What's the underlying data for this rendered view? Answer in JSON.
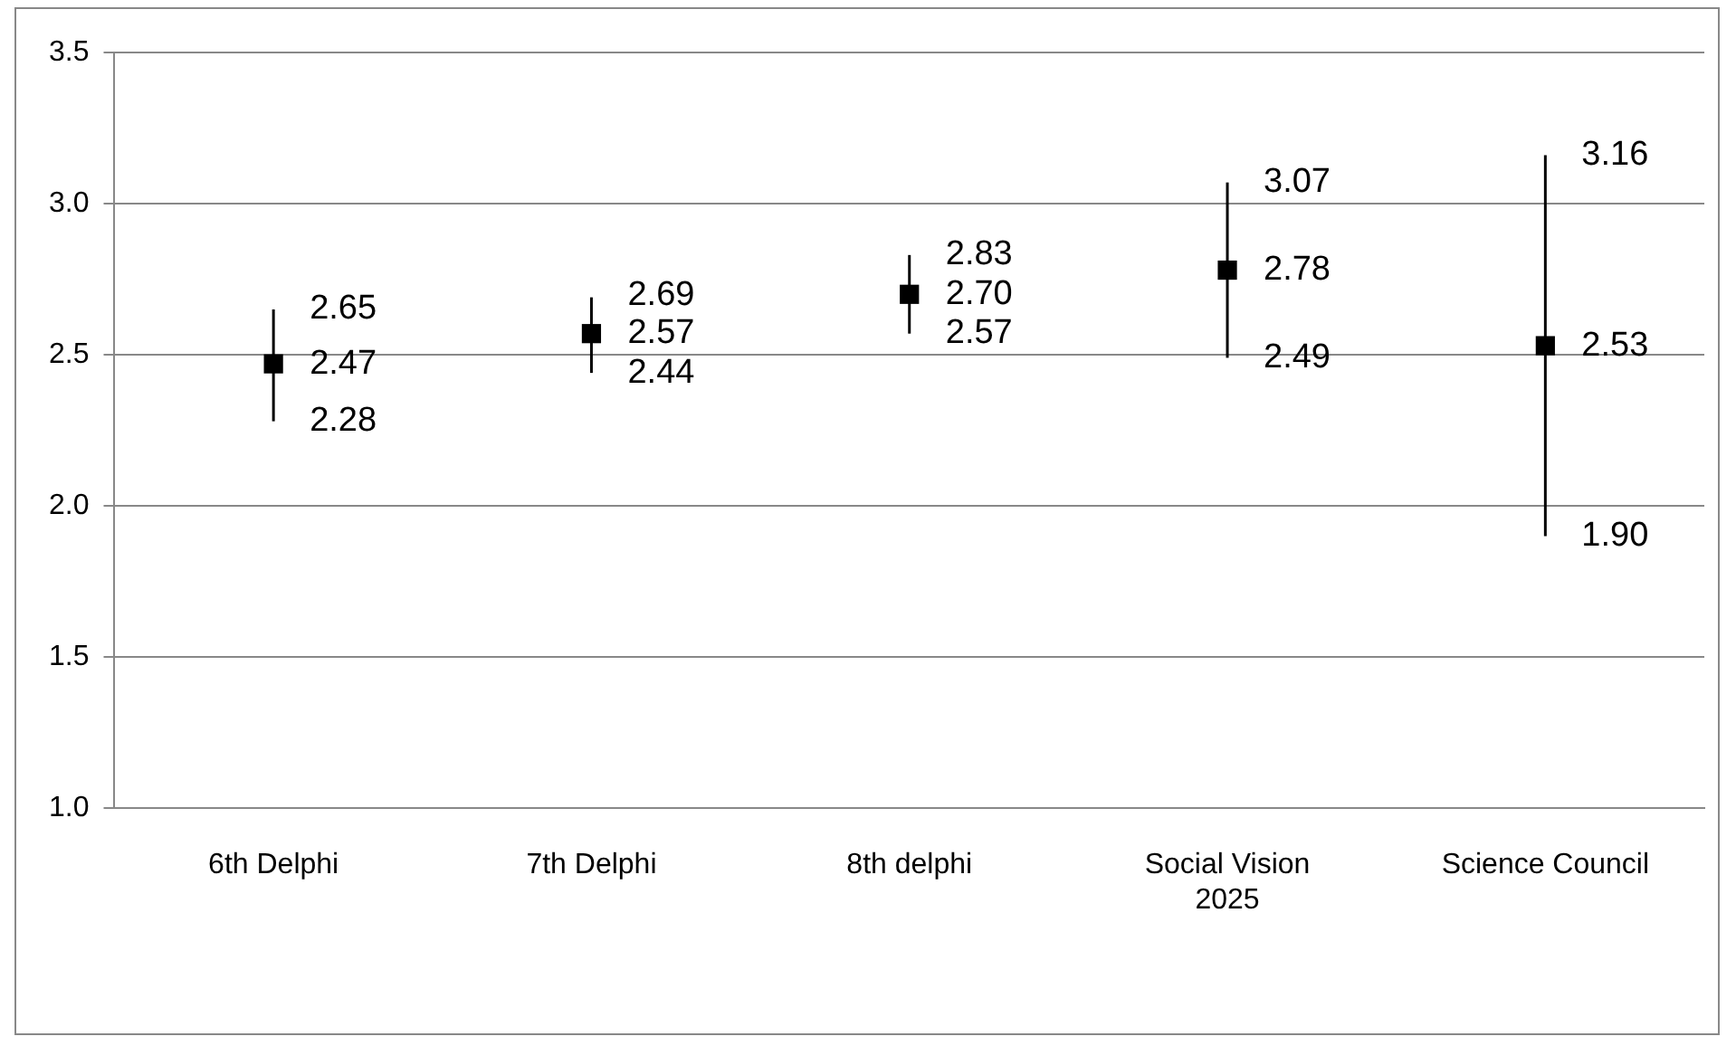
{
  "chart_data": {
    "type": "scatter",
    "categories": [
      "6th Delphi",
      "7th Delphi",
      "8th delphi",
      "Social Vision 2025",
      "Science Council"
    ],
    "values": [
      2.47,
      2.57,
      2.7,
      2.78,
      2.53
    ],
    "errors": [
      [
        2.28,
        2.65
      ],
      [
        2.44,
        2.69
      ],
      [
        2.57,
        2.83
      ],
      [
        2.49,
        3.07
      ],
      [
        1.9,
        3.16
      ]
    ],
    "color": "#000000",
    "marker": "square",
    "ylim": [
      1.0,
      3.5
    ],
    "yticks": [
      {
        "value": 1.0,
        "label": "1.0"
      },
      {
        "value": 1.5,
        "label": "1.5"
      },
      {
        "value": 2.0,
        "label": "2.0"
      },
      {
        "value": 2.5,
        "label": "2.5"
      },
      {
        "value": 3.0,
        "label": "3.0"
      },
      {
        "value": 3.5,
        "label": "3.5"
      }
    ],
    "grid": "y",
    "legend": false,
    "value_labels": [
      "2.47",
      "2.57",
      "2.70",
      "2.78",
      "2.53"
    ],
    "annotations": [
      {
        "text": "2.65",
        "x": "6th Delphi",
        "y": 2.65
      },
      {
        "text": "2.28",
        "x": "6th Delphi",
        "y": 2.28
      },
      {
        "text": "2.69",
        "x": "7th Delphi",
        "y": 2.69
      },
      {
        "text": "2.44",
        "x": "7th Delphi",
        "y": 2.44
      },
      {
        "text": "2.83",
        "x": "8th delphi",
        "y": 2.83
      },
      {
        "text": "2.57",
        "x": "8th delphi",
        "y": 2.57
      },
      {
        "text": "3.07",
        "x": "Social Vision 2025",
        "y": 3.07
      },
      {
        "text": "2.49",
        "x": "Social Vision 2025",
        "y": 2.49
      },
      {
        "text": "3.16",
        "x": "Science Council",
        "y": 3.16
      },
      {
        "text": "1.90",
        "x": "Science Council",
        "y": 1.9
      }
    ]
  }
}
